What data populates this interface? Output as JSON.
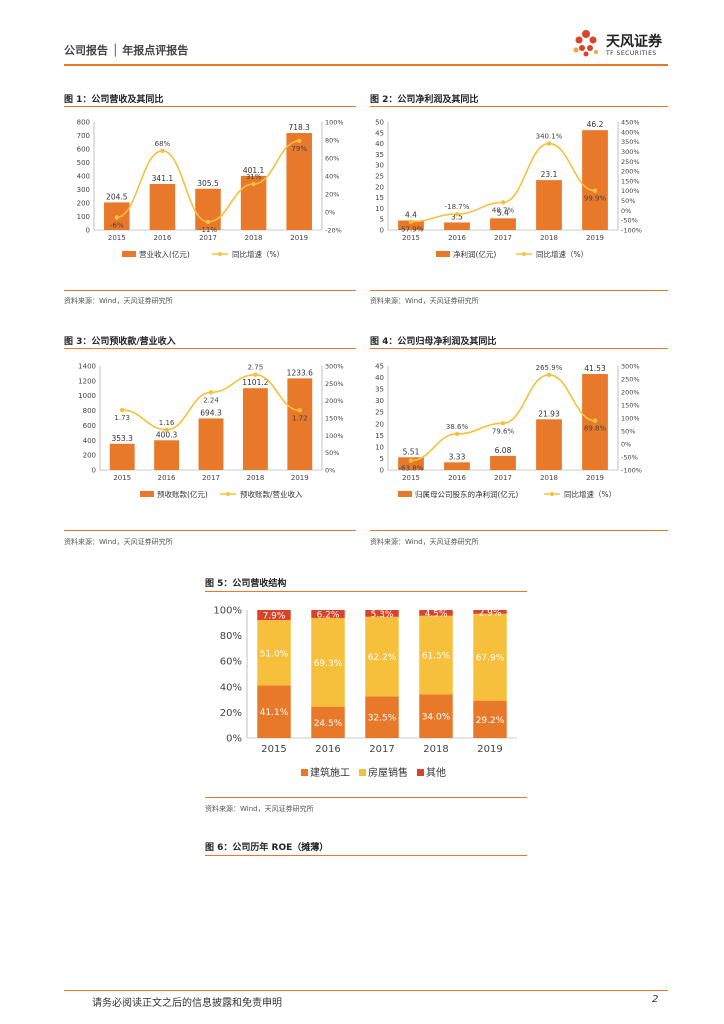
{
  "header": {
    "title": "公司报告 │ 年报点评报告",
    "brand": "天风证券",
    "brand_en": "TF SECURITIES"
  },
  "colors": {
    "bar": "#e8792b",
    "line": "#f7c03c",
    "other": "#d9432a",
    "accent": "#e8792b"
  },
  "figures": [
    {
      "title": "图 1：公司营收及其同比",
      "source": "资料来源：Wind，天风证券研究所"
    },
    {
      "title": "图 2：公司净利润及其同比",
      "source": "资料来源：Wind，天风证券研究所"
    },
    {
      "title": "图 3：公司预收款/营业收入",
      "source": "资料来源：Wind，天风证券研究所"
    },
    {
      "title": "图 4：公司归母净利润及其同比",
      "source": "资料来源：Wind，天风证券研究所"
    },
    {
      "title": "图 5：公司营收结构",
      "source": "资料来源：Wind，天风证券研究所"
    },
    {
      "title": "图 6：公司历年 ROE（摊薄）"
    }
  ],
  "chart_data": [
    {
      "type": "bar+line",
      "categories": [
        "2015",
        "2016",
        "2017",
        "2018",
        "2019"
      ],
      "series": [
        {
          "name": "营业收入(亿元)",
          "type": "bar",
          "axis": "left",
          "values": [
            204.5,
            341.1,
            305.5,
            401.1,
            718.3
          ],
          "labels": [
            "204.5",
            "341.1",
            "305.5",
            "401.1",
            "718.3"
          ]
        },
        {
          "name": "同比增速（%）",
          "type": "line",
          "axis": "right",
          "values": [
            -6,
            68,
            -11,
            31,
            79
          ],
          "labels": [
            "-6%",
            "68%",
            "-11%",
            "31%",
            "79%"
          ]
        }
      ],
      "ylim": [
        0,
        800
      ],
      "yticks": [
        "0",
        "100",
        "200",
        "300",
        "400",
        "500",
        "600",
        "700",
        "800"
      ],
      "y2lim": [
        -20,
        100
      ],
      "y2ticks": [
        "-20%",
        "0%",
        "20%",
        "40%",
        "60%",
        "80%",
        "100%"
      ]
    },
    {
      "type": "bar+line",
      "categories": [
        "2015",
        "2016",
        "2017",
        "2018",
        "2019"
      ],
      "series": [
        {
          "name": "净利润(亿元)",
          "type": "bar",
          "axis": "left",
          "values": [
            4.4,
            3.5,
            5.4,
            23.1,
            46.2
          ],
          "labels": [
            "4.4",
            "3.5",
            "5.4",
            "23.1",
            "46.2"
          ]
        },
        {
          "name": "同比增速（%）",
          "type": "line",
          "axis": "right",
          "values": [
            -57.9,
            -18.7,
            40.7,
            340.1,
            99.9
          ],
          "labels": [
            "-57.9%",
            "-18.7%",
            "40.7%",
            "340.1%",
            "99.9%"
          ]
        }
      ],
      "ylim": [
        0,
        50
      ],
      "yticks": [
        "0",
        "5",
        "10",
        "15",
        "20",
        "25",
        "30",
        "35",
        "40",
        "45",
        "50"
      ],
      "y2lim": [
        -100,
        450
      ],
      "y2ticks": [
        "-100%",
        "-50%",
        "0%",
        "50%",
        "100%",
        "150%",
        "200%",
        "250%",
        "300%",
        "350%",
        "400%",
        "450%"
      ]
    },
    {
      "type": "bar+line",
      "categories": [
        "2015",
        "2016",
        "2017",
        "2018",
        "2019"
      ],
      "series": [
        {
          "name": "预收账款(亿元)",
          "type": "bar",
          "axis": "left",
          "values": [
            353.3,
            400.3,
            694.3,
            1101.2,
            1233.6
          ],
          "labels": [
            "353.3",
            "400.3",
            "694.3",
            "1101.2",
            "1233.6"
          ]
        },
        {
          "name": "预收账款/营业收入",
          "type": "line",
          "axis": "right",
          "values": [
            1.73,
            1.16,
            2.24,
            2.75,
            1.72
          ],
          "labels": [
            "1.73",
            "1.16",
            "2.24",
            "2.75",
            "1.72"
          ]
        }
      ],
      "ylim": [
        0,
        1400
      ],
      "yticks": [
        "0",
        "200",
        "400",
        "600",
        "800",
        "1000",
        "1200",
        "1400"
      ],
      "y2lim": [
        0,
        3
      ],
      "y2ticks": [
        "0%",
        "50%",
        "100%",
        "150%",
        "200%",
        "250%",
        "300%"
      ]
    },
    {
      "type": "bar+line",
      "categories": [
        "2015",
        "2016",
        "2017",
        "2018",
        "2019"
      ],
      "series": [
        {
          "name": "归属母公司股东的净利润(亿元)",
          "type": "bar",
          "axis": "left",
          "values": [
            5.51,
            3.33,
            6.08,
            21.93,
            41.53
          ],
          "labels": [
            "5.51",
            "3.33",
            "6.08",
            "21.93",
            "41.53"
          ]
        },
        {
          "name": "同比增速（%）",
          "type": "line",
          "axis": "right",
          "values": [
            -63.8,
            38.6,
            79.6,
            265.9,
            89.8
          ],
          "labels": [
            "-63.8%",
            "38.6%",
            "79.6%",
            "265.9%",
            "89.8%"
          ]
        }
      ],
      "ylim": [
        0,
        45
      ],
      "yticks": [
        "0",
        "5",
        "10",
        "15",
        "20",
        "25",
        "30",
        "35",
        "40",
        "45"
      ],
      "y2lim": [
        -100,
        300
      ],
      "y2ticks": [
        "-100%",
        "-50%",
        "0%",
        "50%",
        "100%",
        "150%",
        "200%",
        "250%",
        "300%"
      ]
    },
    {
      "type": "stacked-bar",
      "categories": [
        "2015",
        "2016",
        "2017",
        "2018",
        "2019"
      ],
      "series": [
        {
          "name": "建筑施工",
          "values": [
            41.1,
            24.5,
            32.5,
            34.0,
            29.2
          ],
          "labels": [
            "41.1%",
            "24.5%",
            "32.5%",
            "34.0%",
            "29.2%"
          ]
        },
        {
          "name": "房屋销售",
          "values": [
            51.0,
            69.3,
            62.2,
            61.5,
            67.9
          ],
          "labels": [
            "51.0%",
            "69.3%",
            "62.2%",
            "61.5%",
            "67.9%"
          ]
        },
        {
          "name": "其他",
          "values": [
            7.9,
            6.2,
            5.3,
            4.5,
            2.9
          ],
          "labels": [
            "7.9%",
            "6.2%",
            "5.3%",
            "4.5%",
            "2.9%"
          ]
        }
      ],
      "ylim": [
        0,
        100
      ],
      "yticks": [
        "0%",
        "20%",
        "40%",
        "60%",
        "80%",
        "100%"
      ]
    }
  ],
  "footer": {
    "disclaimer": "请务必阅读正文之后的信息披露和免责申明",
    "page": "2"
  }
}
